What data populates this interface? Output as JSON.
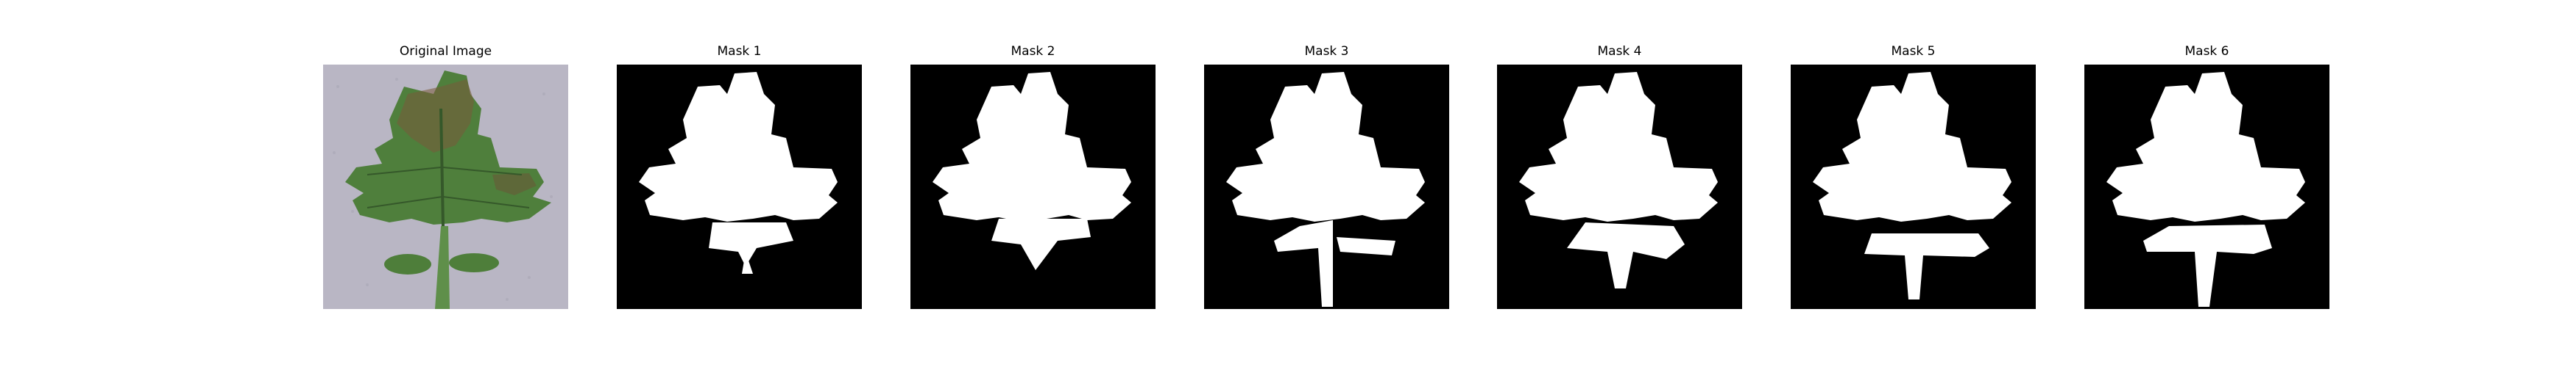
{
  "figure": {
    "panels": [
      {
        "id": "original",
        "title": "Original Image",
        "kind": "photo"
      },
      {
        "id": "mask1",
        "title": "Mask 1",
        "kind": "mask",
        "variant": 1
      },
      {
        "id": "mask2",
        "title": "Mask 2",
        "kind": "mask",
        "variant": 2
      },
      {
        "id": "mask3",
        "title": "Mask 3",
        "kind": "mask",
        "variant": 3
      },
      {
        "id": "mask4",
        "title": "Mask 4",
        "kind": "mask",
        "variant": 4
      },
      {
        "id": "mask5",
        "title": "Mask 5",
        "kind": "mask",
        "variant": 5
      },
      {
        "id": "mask6",
        "title": "Mask 6",
        "kind": "mask",
        "variant": 6
      }
    ],
    "colors": {
      "mask_background": "#000000",
      "mask_foreground": "#ffffff",
      "photo_background": "#b9b6c4",
      "leaf_green": "#4f7f3c",
      "leaf_dark": "#35582a",
      "lesion_brown": "#7a5a3a"
    }
  }
}
